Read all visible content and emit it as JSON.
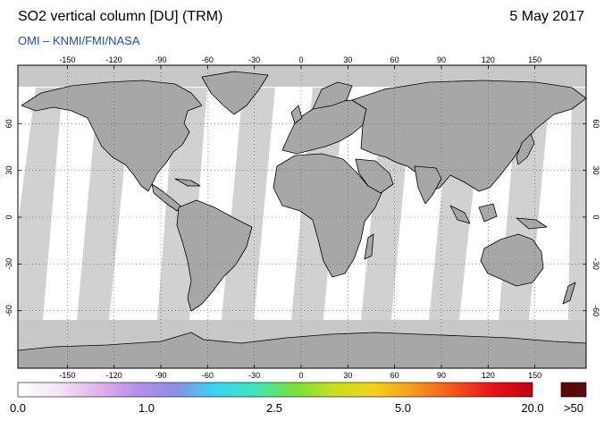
{
  "header": {
    "title": "SO2 vertical column [DU] (TRM)",
    "date": "5 May 2017",
    "subtitle": "OMI  –  KNMI/FMI/NASA"
  },
  "map": {
    "lon_ticks": [
      "-150",
      "-120",
      "-90",
      "-60",
      "-30",
      "0",
      "30",
      "60",
      "90",
      "120",
      "150"
    ],
    "lat_ticks": [
      "60",
      "30",
      "0",
      "-30",
      "-60"
    ],
    "lat_ticks_right": [
      "60",
      "30",
      "0",
      "-30",
      "-60"
    ]
  },
  "colorbar": {
    "labels": [
      "0.0",
      "1.0",
      "2.5",
      "5.0",
      "20.0"
    ],
    "overflow_label": ">50",
    "colors": [
      "#ffffff",
      "#f2e6f7",
      "#e2b3ee",
      "#b98ee8",
      "#8a8fe6",
      "#38d6f2",
      "#3ce6b9",
      "#7ae03a",
      "#c7e01e",
      "#f2d21a",
      "#f59a1c",
      "#f2561c",
      "#e8111a",
      "#c00014"
    ],
    "overflow_color": "#5a0808"
  },
  "colors": {
    "ocean": "#ffffff",
    "land": "#a7a7a7",
    "swath_gap": "#d1d1d1",
    "no_data": "#c8c8c8",
    "coast": "#000000"
  }
}
